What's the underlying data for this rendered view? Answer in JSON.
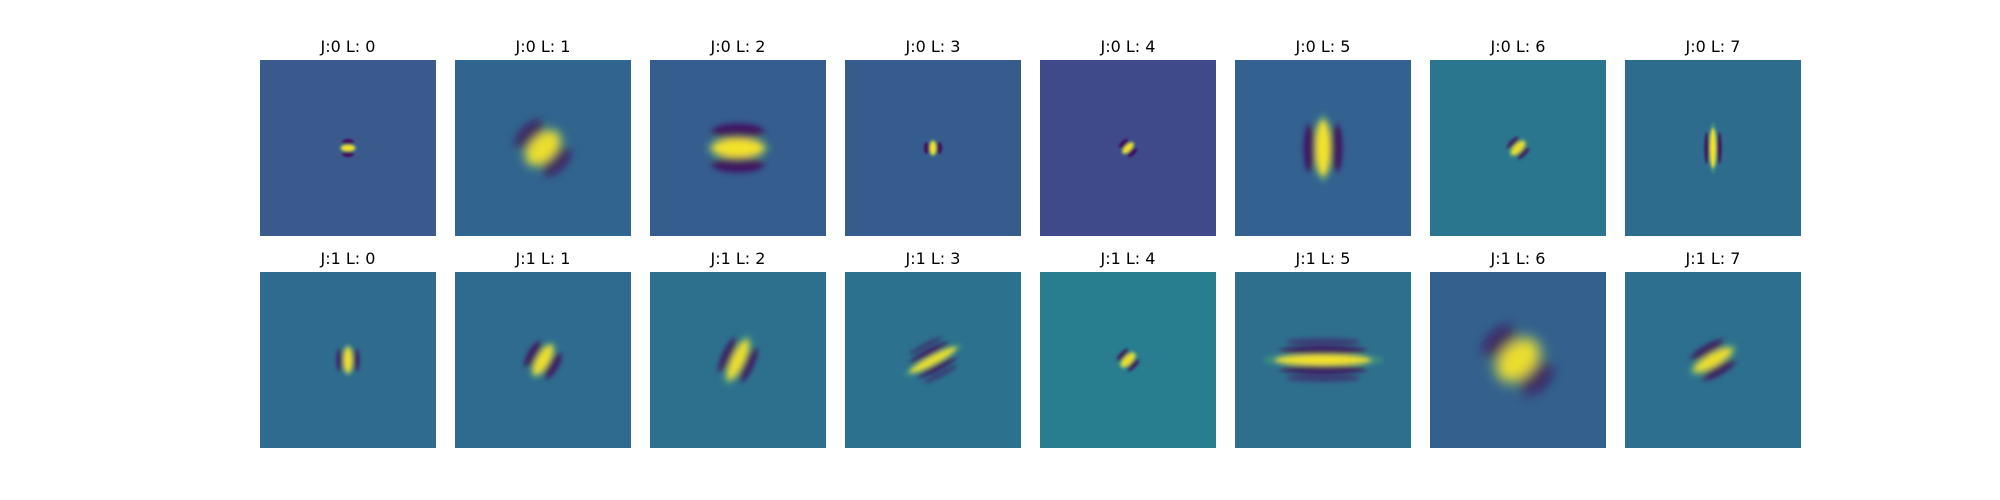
{
  "colormap": {
    "name": "viridis",
    "low": "#440154",
    "mid": "#21908d",
    "high": "#fde725"
  },
  "rows": [
    {
      "panels": [
        {
          "title": "J:0 L: 0",
          "background": "#3a5a8e",
          "angle_deg": 90,
          "filter": "tiny-dot"
        },
        {
          "title": "J:0 L: 1",
          "background": "#31648e",
          "angle_deg": 45,
          "filter": "diagonal-blob"
        },
        {
          "title": "J:0 L: 2",
          "background": "#355d8e",
          "angle_deg": 90,
          "filter": "horizontal-bands"
        },
        {
          "title": "J:0 L: 3",
          "background": "#365c8d",
          "angle_deg": 0,
          "filter": "tiny-dot"
        },
        {
          "title": "J:0 L: 4",
          "background": "#3e4a89",
          "angle_deg": 45,
          "filter": "tiny-dot"
        },
        {
          "title": "J:0 L: 5",
          "background": "#336190",
          "angle_deg": 0,
          "filter": "vertical-bands"
        },
        {
          "title": "J:0 L: 6",
          "background": "#2a768e",
          "angle_deg": 45,
          "filter": "small-checker"
        },
        {
          "title": "J:0 L: 7",
          "background": "#2e6c8e",
          "angle_deg": 0,
          "filter": "thin-vertical"
        }
      ]
    },
    {
      "panels": [
        {
          "title": "J:1 L: 0",
          "background": "#2f6b8e",
          "angle_deg": 0,
          "filter": "small-vertical"
        },
        {
          "title": "J:1 L: 1",
          "background": "#2f6b8e",
          "angle_deg": 30,
          "filter": "small-diagonal"
        },
        {
          "title": "J:1 L: 2",
          "background": "#2d708e",
          "angle_deg": 25,
          "filter": "medium-diagonal"
        },
        {
          "title": "J:1 L: 3",
          "background": "#2c718e",
          "angle_deg": 62,
          "filter": "long-diagonal"
        },
        {
          "title": "J:1 L: 4",
          "background": "#287d8e",
          "angle_deg": 45,
          "filter": "small-checker"
        },
        {
          "title": "J:1 L: 5",
          "background": "#2e6f8e",
          "angle_deg": 90,
          "filter": "wide-horizontal"
        },
        {
          "title": "J:1 L: 6",
          "background": "#33608d",
          "angle_deg": 45,
          "filter": "big-diagonal-blob"
        },
        {
          "title": "J:1 L: 7",
          "background": "#2d6f8e",
          "angle_deg": 60,
          "filter": "medium-diagonal"
        }
      ]
    }
  ]
}
